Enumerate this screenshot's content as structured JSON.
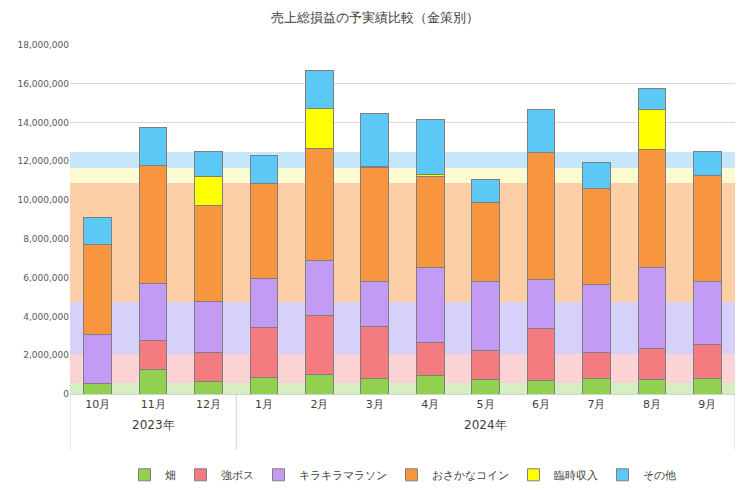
{
  "chart_data": {
    "type": "bar",
    "title": "売上総損益の予実績比較（金策別）",
    "stacked": true,
    "grid": true,
    "legend": "bottom",
    "categories": [
      "10月",
      "11月",
      "12月",
      "1月",
      "2月",
      "3月",
      "4月",
      "5月",
      "6月",
      "7月",
      "8月",
      "9月"
    ],
    "category_groups": [
      "2023年",
      "2023年",
      "2023年",
      "2024年",
      "2024年",
      "2024年",
      "2024年",
      "2024年",
      "2024年",
      "2024年",
      "2024年",
      "2024年"
    ],
    "ylim": [
      0,
      18000000
    ],
    "yticks": [
      0,
      {
        "value": 2000000,
        "label": "2,000,000"
      },
      {
        "value": 4000000,
        "label": "4,000,000"
      },
      {
        "value": 6000000,
        "label": "6,000,000"
      },
      {
        "value": 8000000,
        "label": "8,000,000"
      },
      {
        "value": 10000000,
        "label": "10,000,000"
      },
      {
        "value": 12000000,
        "label": "12,000,000"
      },
      {
        "value": 14000000,
        "label": "14,000,000"
      },
      {
        "value": 16000000,
        "label": "16,000,000"
      },
      {
        "value": 18000000,
        "label": "18,000,000"
      }
    ],
    "series": [
      {
        "type": "band",
        "color": "#d6efc2",
        "values": [
          550000,
          550000,
          550000,
          550000,
          550000,
          550000,
          550000,
          550000,
          550000,
          550000,
          550000,
          550000
        ]
      },
      {
        "type": "band",
        "color": "#fcd3d5",
        "values": [
          1500000,
          1500000,
          1500000,
          1500000,
          1500000,
          1500000,
          1500000,
          1500000,
          1500000,
          1500000,
          1500000,
          1500000
        ]
      },
      {
        "type": "band",
        "color": "#d5d1fa",
        "values": [
          2700000,
          2700000,
          2700000,
          2700000,
          2700000,
          2700000,
          2700000,
          2700000,
          2700000,
          2700000,
          2700000,
          2700000
        ]
      },
      {
        "type": "band",
        "color": "#fdcfa6",
        "values": [
          6150000,
          6150000,
          6150000,
          6150000,
          6150000,
          6150000,
          6150000,
          6150000,
          6150000,
          6150000,
          6150000,
          6150000
        ]
      },
      {
        "type": "band",
        "color": "#fcfad0",
        "values": [
          750000,
          750000,
          750000,
          750000,
          750000,
          750000,
          750000,
          750000,
          750000,
          750000,
          750000,
          750000
        ]
      },
      {
        "type": "band",
        "color": "#c6e6f9",
        "values": [
          850000,
          850000,
          850000,
          850000,
          850000,
          850000,
          850000,
          850000,
          850000,
          850000,
          850000,
          850000
        ]
      },
      {
        "type": "bar",
        "name": "畑",
        "color": "#92d050",
        "values": [
          530000,
          1250000,
          650000,
          850000,
          1000000,
          800000,
          950000,
          750000,
          700000,
          800000,
          750000,
          800000
        ]
      },
      {
        "type": "bar",
        "name": "強ボス",
        "color": "#f47c80",
        "values": [
          0,
          1500000,
          1500000,
          2600000,
          3050000,
          2700000,
          1700000,
          1500000,
          2700000,
          1350000,
          1600000,
          1750000
        ]
      },
      {
        "type": "bar",
        "name": "キラキラマラソン",
        "color": "#c39bf5",
        "values": [
          2520000,
          2950000,
          2600000,
          2500000,
          2850000,
          2300000,
          3850000,
          3550000,
          2500000,
          3500000,
          4150000,
          3250000
        ]
      },
      {
        "type": "bar",
        "name": "おさかなコイン",
        "color": "#f7963f",
        "values": [
          4650000,
          6100000,
          4950000,
          4900000,
          5750000,
          5900000,
          4700000,
          4100000,
          6550000,
          4950000,
          6100000,
          5450000
        ]
      },
      {
        "type": "bar",
        "name": "臨時収入",
        "color": "#ffff00",
        "values": [
          0,
          0,
          1500000,
          0,
          2050000,
          50000,
          100000,
          0,
          0,
          0,
          2050000,
          0
        ]
      },
      {
        "type": "bar",
        "name": "その他",
        "color": "#5bc8f5",
        "values": [
          1400000,
          1950000,
          1300000,
          1450000,
          2000000,
          2700000,
          2850000,
          1150000,
          2200000,
          1350000,
          1100000,
          1250000
        ]
      }
    ]
  }
}
